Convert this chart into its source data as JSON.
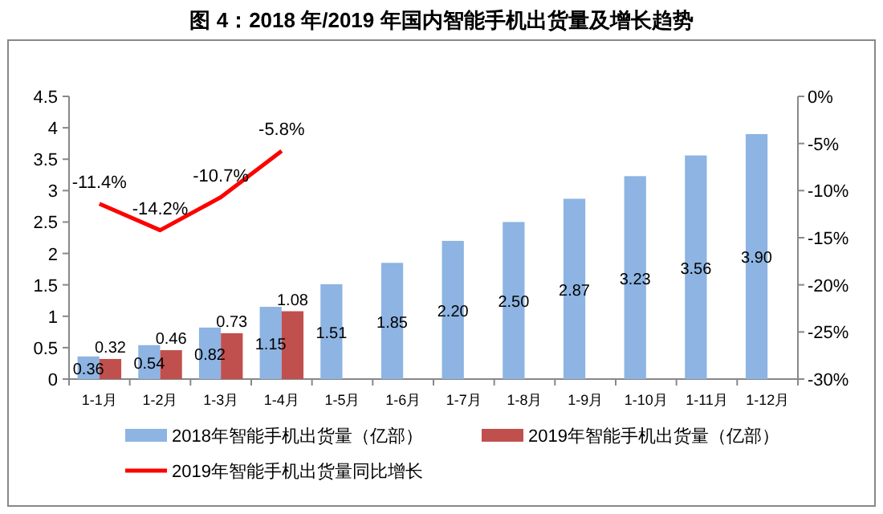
{
  "chart_data": {
    "type": "bar",
    "title": "图 4：2018 年/2019 年国内智能手机出货量及增长趋势",
    "categories": [
      "1-1月",
      "1-2月",
      "1-3月",
      "1-4月",
      "1-5月",
      "1-6月",
      "1-7月",
      "1-8月",
      "1-9月",
      "1-10月",
      "1-11月",
      "1-12月"
    ],
    "series": [
      {
        "name": "2018年智能手机出货量（亿部）",
        "color": "#8db4e2",
        "values": [
          0.36,
          0.54,
          0.82,
          1.15,
          1.51,
          1.85,
          2.2,
          2.5,
          2.87,
          3.23,
          3.56,
          3.9
        ],
        "value_labels": [
          "0.36",
          "0.54",
          "0.82",
          "1.15",
          "1.51",
          "1.85",
          "2.20",
          "2.50",
          "2.87",
          "3.23",
          "3.56",
          "3.90"
        ]
      },
      {
        "name": "2019年智能手机出货量（亿部）",
        "color": "#c0504d",
        "values": [
          0.32,
          0.46,
          0.73,
          1.08,
          null,
          null,
          null,
          null,
          null,
          null,
          null,
          null
        ],
        "value_labels": [
          "0.32",
          "0.46",
          "0.73",
          "1.08",
          null,
          null,
          null,
          null,
          null,
          null,
          null,
          null
        ]
      },
      {
        "name": "2019年智能手机出货量同比增长",
        "type": "line",
        "axis": "y2",
        "color": "#ff0000",
        "values": [
          -11.4,
          -14.2,
          -10.7,
          -5.8,
          null,
          null,
          null,
          null,
          null,
          null,
          null,
          null
        ],
        "value_labels": [
          "-11.4%",
          "-14.2%",
          "-10.7%",
          "-5.8%",
          null,
          null,
          null,
          null,
          null,
          null,
          null,
          null
        ]
      }
    ],
    "ylim": [
      0,
      4.5
    ],
    "yticks": [
      0,
      0.5,
      1,
      1.5,
      2,
      2.5,
      3,
      3.5,
      4,
      4.5
    ],
    "y2lim": [
      -30,
      0
    ],
    "y2ticks": [
      {
        "value": -30,
        "label": "-30%"
      },
      {
        "value": -25,
        "label": "-25%"
      },
      {
        "value": -20,
        "label": "-20%"
      },
      {
        "value": -15,
        "label": "-15%"
      },
      {
        "value": -10,
        "label": "-10%"
      },
      {
        "value": -5,
        "label": "-5%"
      },
      {
        "value": 0,
        "label": "0%"
      }
    ],
    "grid": false,
    "legend": "bottom",
    "marker": "none",
    "line_style": "solid"
  }
}
